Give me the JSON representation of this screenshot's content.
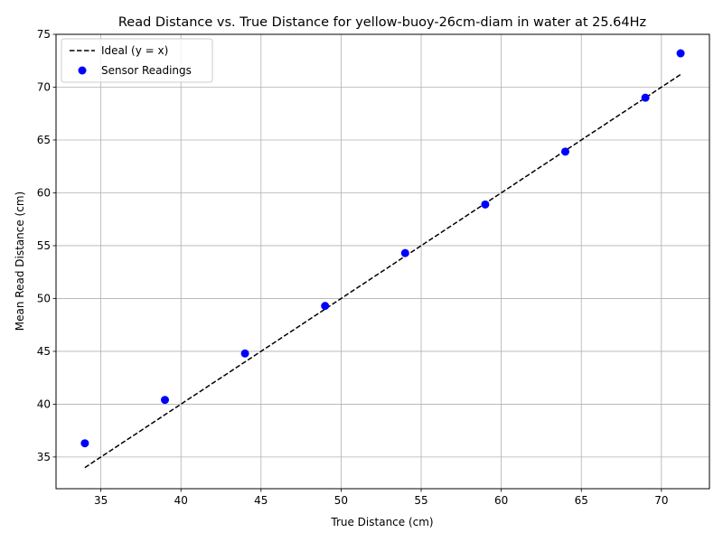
{
  "chart_data": {
    "type": "scatter",
    "title": "Read Distance vs. True Distance for yellow-buoy-26cm-diam in water at 25.64Hz",
    "xlabel": "True Distance (cm)",
    "ylabel": "Mean Read Distance (cm)",
    "xlim": [
      32.2,
      73.0
    ],
    "ylim": [
      32.0,
      75.0
    ],
    "xticks": [
      35,
      40,
      45,
      50,
      55,
      60,
      65,
      70
    ],
    "yticks": [
      35,
      40,
      45,
      50,
      55,
      60,
      65,
      70,
      75
    ],
    "grid": true,
    "legend_position": "upper-left",
    "series": [
      {
        "name": "Ideal (y = x)",
        "kind": "line",
        "style": "dashed",
        "color": "#000000",
        "x": [
          34,
          71.2
        ],
        "y": [
          34,
          71.2
        ]
      },
      {
        "name": "Sensor Readings",
        "kind": "scatter",
        "color": "#0000ff",
        "x": [
          34,
          39,
          44,
          49,
          54,
          59,
          64,
          69,
          71.2
        ],
        "y": [
          36.3,
          40.4,
          44.8,
          49.3,
          54.3,
          58.9,
          63.9,
          69.0,
          73.2
        ]
      }
    ]
  }
}
